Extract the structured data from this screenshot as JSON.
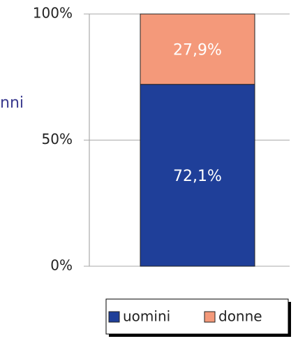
{
  "chart_data": {
    "type": "stacked_bar",
    "annotations": [
      "nni"
    ],
    "categories": [
      null
    ],
    "series": [
      {
        "name": "uomini",
        "color": "#1f3f99",
        "values": [
          72.1
        ],
        "value_labels": [
          "72,1%"
        ]
      },
      {
        "name": "donne",
        "color": "#f4997a",
        "values": [
          27.9
        ],
        "value_labels": [
          "27,9%"
        ]
      }
    ],
    "ylim": [
      0,
      100
    ],
    "yticks": [
      {
        "value": 0,
        "label": "0%"
      },
      {
        "value": 50,
        "label": "50%"
      },
      {
        "value": 100,
        "label": "100%"
      }
    ],
    "grid": true,
    "legend": "bottom"
  }
}
